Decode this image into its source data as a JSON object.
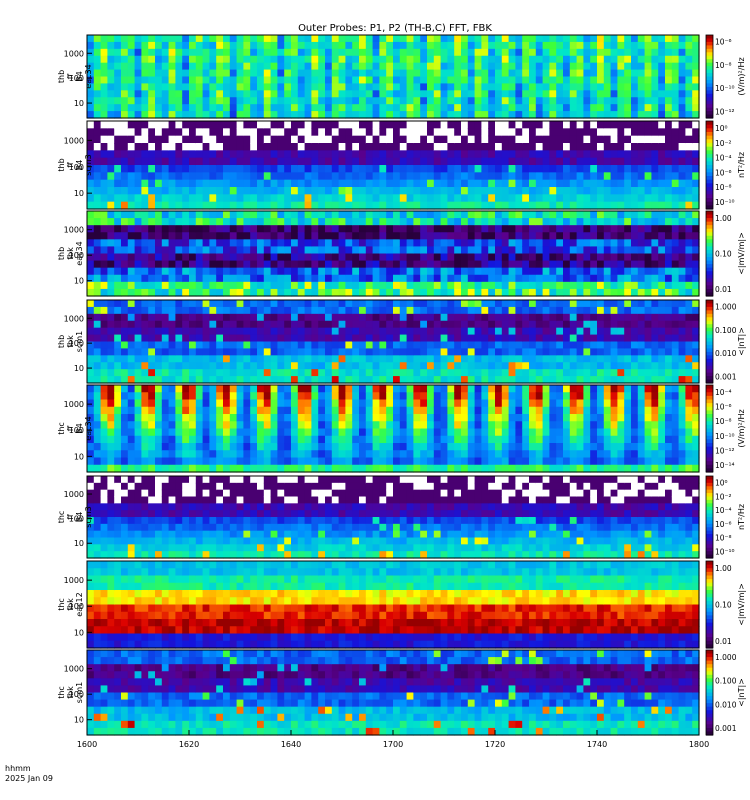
{
  "title": "Outer Probes: P1, P2 (TH-B,C) FFT, FBK",
  "time_label": {
    "line1": "hhmm",
    "line2": "2025 Jan 09"
  },
  "x_axis": {
    "ticks": [
      "1600",
      "1620",
      "1640",
      "1700",
      "1720",
      "1740",
      "1800"
    ]
  },
  "chart_data": [
    {
      "type": "heatmap",
      "label_lines": [
        "thb",
        "ff",
        "B4",
        "eac34"
      ],
      "yticks": [
        "1000",
        "100",
        "10"
      ],
      "colorbar": {
        "unit": "(V/m)²/Hz",
        "ticks": [
          "10⁻⁶",
          "10⁻⁸",
          "10⁻¹⁰",
          "10⁻¹²"
        ],
        "style": "rainbow"
      },
      "pattern": "spiky-high"
    },
    {
      "type": "heatmap",
      "label_lines": [
        "thb",
        "ff",
        "B4",
        "scm3"
      ],
      "yticks": [
        "1000",
        "100",
        "10"
      ],
      "colorbar": {
        "unit": "nT²/Hz",
        "ticks": [
          "10⁰",
          "10⁻²",
          "10⁻⁴",
          "10⁻⁶",
          "10⁻⁸",
          "10⁻¹⁰"
        ],
        "style": "rainbow"
      },
      "pattern": "scm-speckle"
    },
    {
      "type": "heatmap",
      "label_lines": [
        "thb",
        "fbk",
        "eac34"
      ],
      "yticks": [
        "1000",
        "100",
        "10"
      ],
      "colorbar": {
        "unit": "<|mV/m|>",
        "ticks": [
          "1.00",
          "0.10",
          "0.01"
        ],
        "style": "rainbow"
      },
      "pattern": "fbk-bands-e"
    },
    {
      "type": "heatmap",
      "label_lines": [
        "thb",
        "fbk",
        "scm1"
      ],
      "yticks": [
        "1000",
        "100",
        "10"
      ],
      "colorbar": {
        "unit": "<|nT|>",
        "ticks": [
          "1.000",
          "0.100",
          "0.010",
          "0.001"
        ],
        "style": "rainbow"
      },
      "pattern": "fbk-bands-b"
    },
    {
      "type": "heatmap",
      "label_lines": [
        "thc",
        "ff",
        "B4",
        "eac34"
      ],
      "yticks": [
        "1000",
        "100",
        "10"
      ],
      "colorbar": {
        "unit": "(V/m)²/Hz",
        "ticks": [
          "10⁻⁴",
          "10⁻⁶",
          "10⁻⁸",
          "10⁻¹⁰",
          "10⁻¹²",
          "10⁻¹⁴"
        ],
        "style": "rainbow"
      },
      "pattern": "spiky-strong"
    },
    {
      "type": "heatmap",
      "label_lines": [
        "thc",
        "ff",
        "B4",
        "scm3"
      ],
      "yticks": [
        "1000",
        "100",
        "10"
      ],
      "colorbar": {
        "unit": "nT²/Hz",
        "ticks": [
          "10⁰",
          "10⁻²",
          "10⁻⁴",
          "10⁻⁶",
          "10⁻⁸",
          "10⁻¹⁰"
        ],
        "style": "rainbow"
      },
      "pattern": "scm-speckle"
    },
    {
      "type": "heatmap",
      "label_lines": [
        "thc",
        "fbk",
        "eac12"
      ],
      "yticks": [
        "1000",
        "100",
        "10"
      ],
      "colorbar": {
        "unit": "<|mV/m|>",
        "ticks": [
          "1.00",
          "0.10",
          "0.01"
        ],
        "style": "rainbow"
      },
      "pattern": "fbk-hot"
    },
    {
      "type": "heatmap",
      "label_lines": [
        "thc",
        "fbk",
        "scm1"
      ],
      "yticks": [
        "1000",
        "100",
        "10"
      ],
      "colorbar": {
        "unit": "<|nT|>",
        "ticks": [
          "1.000",
          "0.100",
          "0.010",
          "0.001"
        ],
        "style": "rainbow"
      },
      "pattern": "fbk-bands-b"
    }
  ]
}
